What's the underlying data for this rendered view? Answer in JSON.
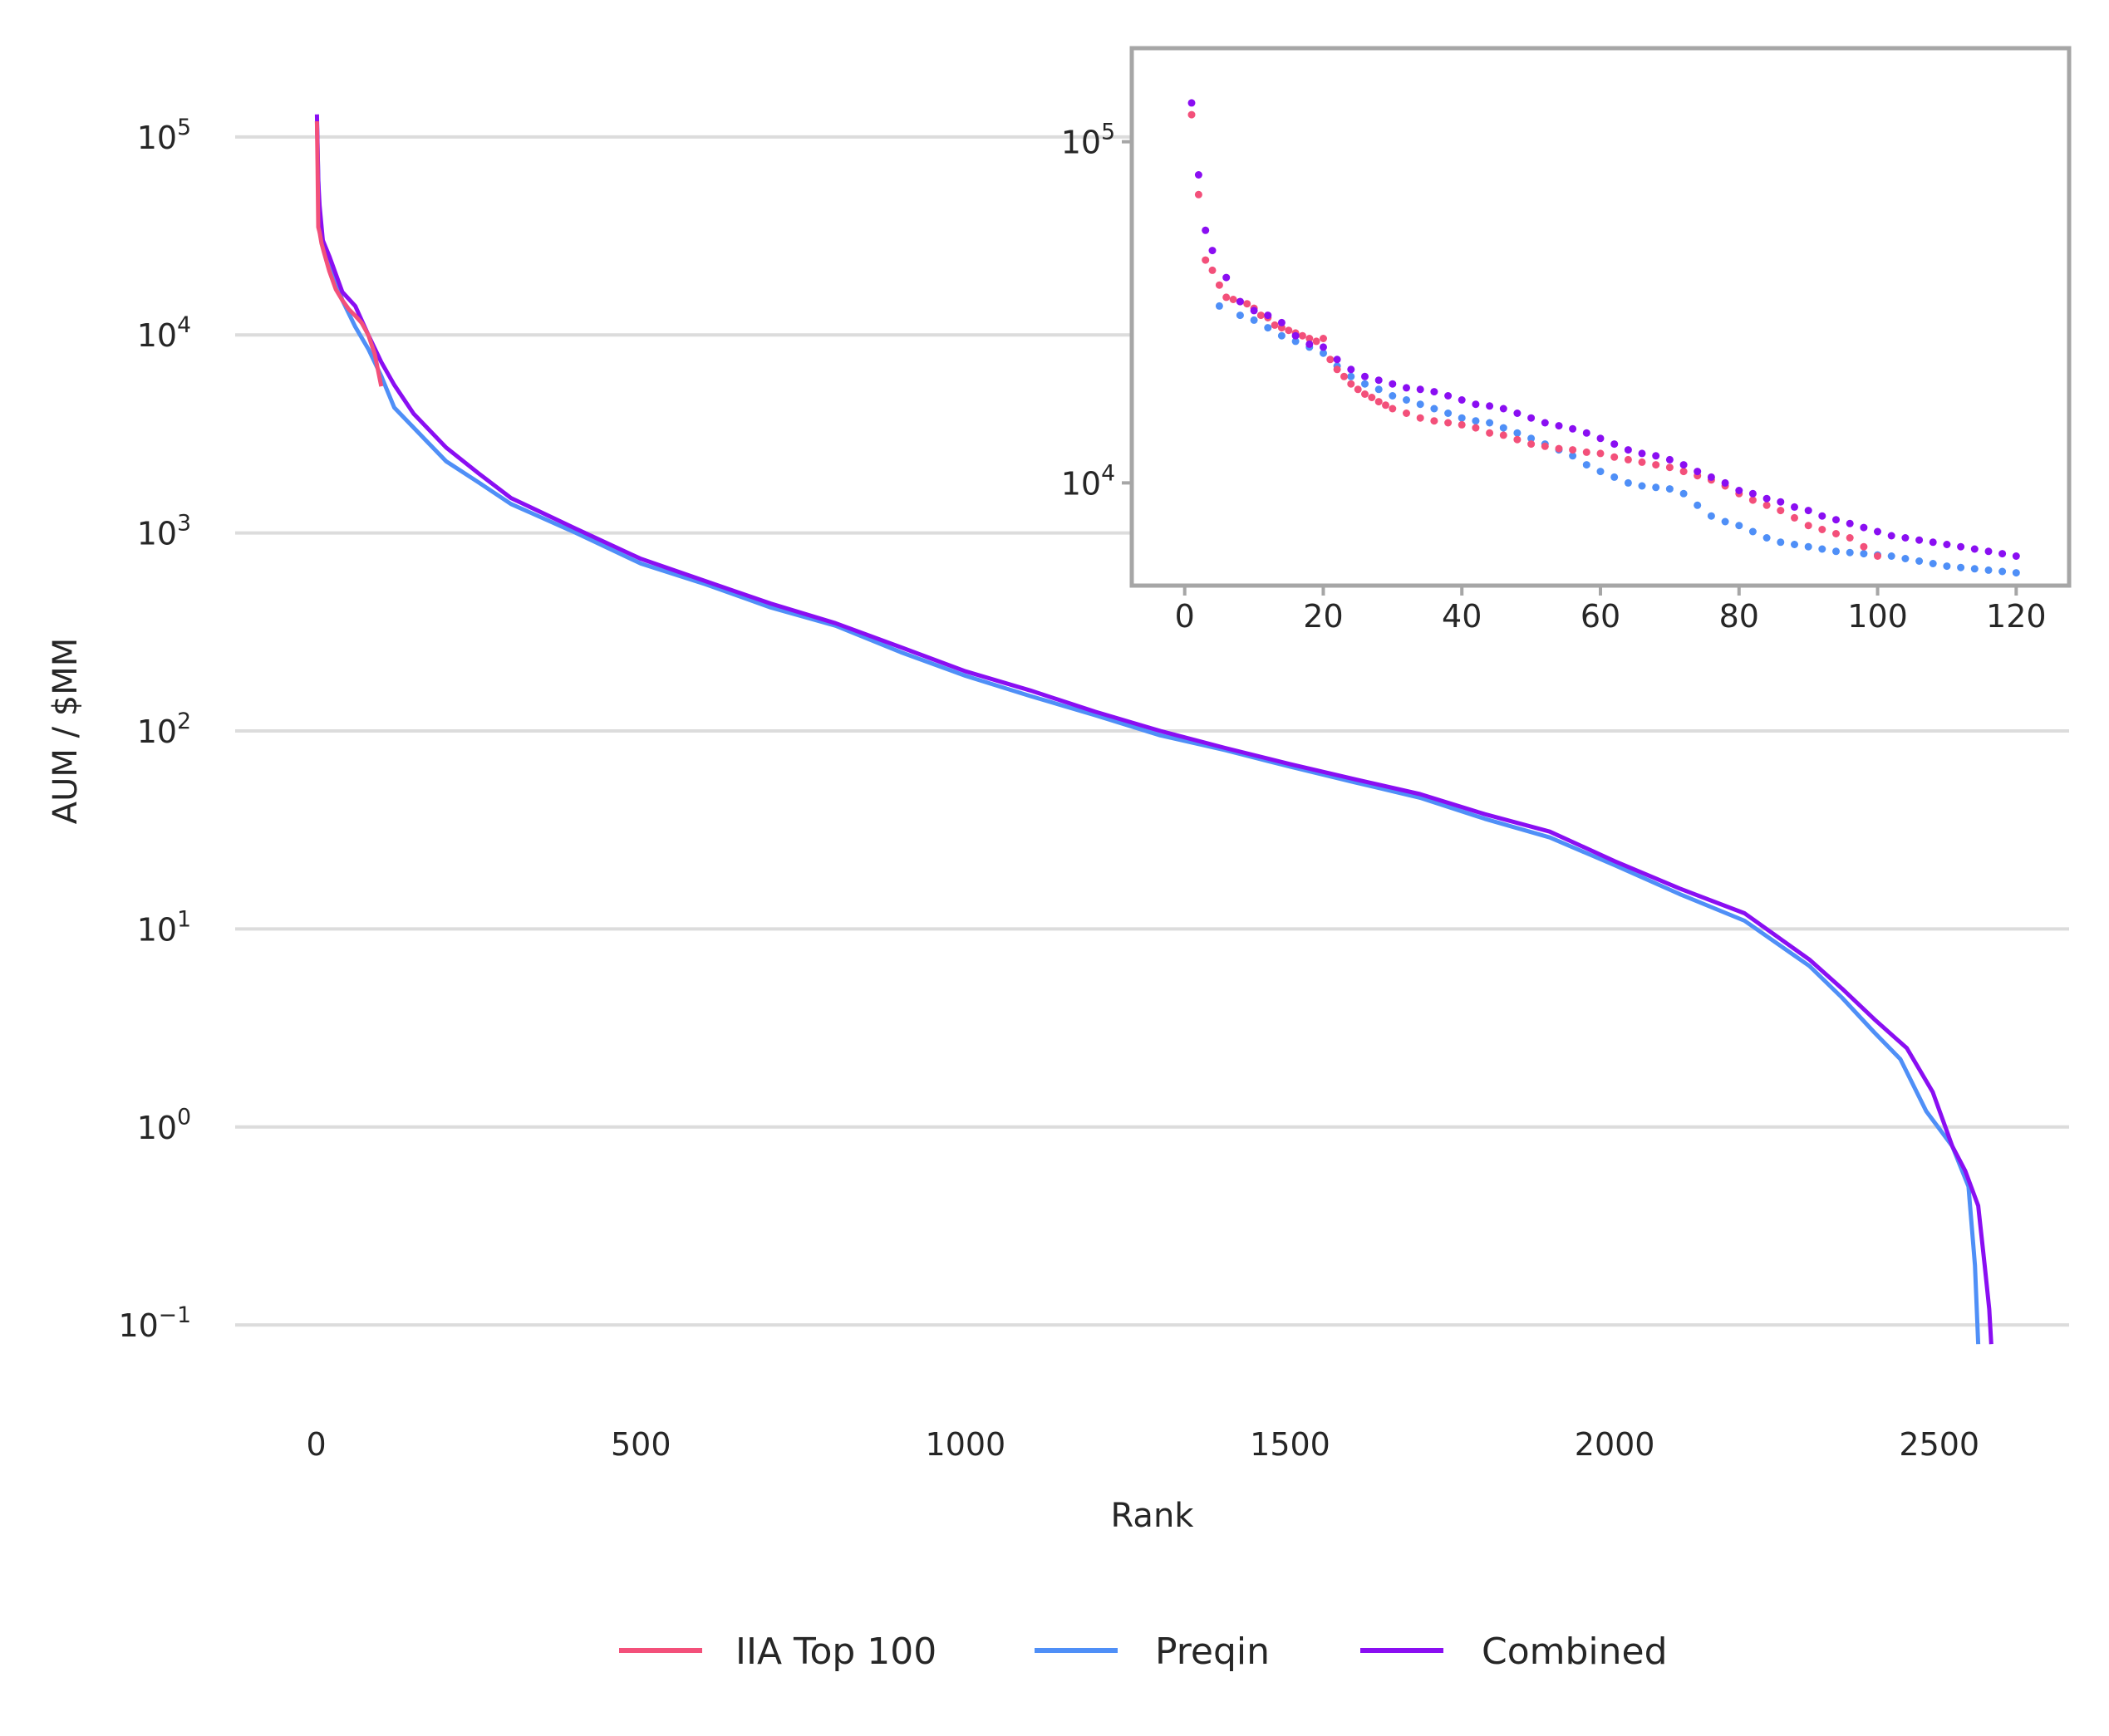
{
  "chart_data": [
    {
      "id": "main",
      "type": "line",
      "xlabel": "Rank",
      "ylabel": "AUM / $MM",
      "yscale": "log",
      "xlim": [
        -125,
        2700
      ],
      "ylim": [
        0.04,
        250000
      ],
      "xticks": [
        0,
        500,
        1000,
        1500,
        2000,
        2500
      ],
      "yticks": [
        0.1,
        1,
        10,
        100,
        1000,
        10000,
        100000
      ],
      "ytick_labels": [
        {
          "base": "10",
          "exp": "−1"
        },
        {
          "base": "10",
          "exp": "0"
        },
        {
          "base": "10",
          "exp": "1"
        },
        {
          "base": "10",
          "exp": "2"
        },
        {
          "base": "10",
          "exp": "3"
        },
        {
          "base": "10",
          "exp": "4"
        },
        {
          "base": "10",
          "exp": "5"
        }
      ],
      "grid": "horizontal",
      "legend_position": "bottom-center",
      "series": [
        {
          "name": "IIA Top 100",
          "color": "#f3507a",
          "x": [
            1,
            2,
            3,
            5,
            8,
            12,
            20,
            30,
            40,
            50,
            60,
            70,
            80,
            90,
            100
          ],
          "y": [
            120000,
            70000,
            35000,
            33000,
            29000,
            26000,
            21000,
            17000,
            15000,
            13500,
            12500,
            11500,
            10000,
            8000,
            5500
          ]
        },
        {
          "name": "Preqin",
          "color": "#4f8ff7",
          "x": [
            1,
            5,
            10,
            20,
            40,
            60,
            80,
            100,
            120,
            150,
            200,
            250,
            300,
            400,
            500,
            600,
            700,
            800,
            900,
            1000,
            1100,
            1200,
            1300,
            1400,
            1500,
            1600,
            1700,
            1800,
            1900,
            2000,
            2100,
            2200,
            2300,
            2350,
            2400,
            2440,
            2480,
            2520,
            2545,
            2555,
            2560
          ],
          "y": [
            120000,
            33000,
            30000,
            24000,
            15000,
            11000,
            8500,
            6200,
            4300,
            3400,
            2300,
            1800,
            1400,
            1000,
            700,
            550,
            420,
            340,
            250,
            190,
            150,
            120,
            95,
            80,
            66,
            55,
            46,
            36,
            29,
            21,
            15,
            11,
            6.5,
            4.5,
            3.0,
            2.2,
            1.2,
            0.8,
            0.5,
            0.2,
            0.08
          ]
        },
        {
          "name": "Combined",
          "color": "#8a0ef2",
          "x": [
            1,
            3,
            5,
            10,
            20,
            40,
            60,
            80,
            100,
            120,
            150,
            200,
            250,
            300,
            400,
            500,
            600,
            700,
            800,
            900,
            1000,
            1100,
            1200,
            1300,
            1400,
            1500,
            1600,
            1700,
            1800,
            1900,
            2000,
            2100,
            2200,
            2300,
            2350,
            2400,
            2450,
            2490,
            2520,
            2540,
            2560,
            2570,
            2577,
            2580
          ],
          "y": [
            130000,
            60000,
            45000,
            30000,
            25000,
            16500,
            14000,
            10000,
            7300,
            5600,
            4000,
            2700,
            2000,
            1500,
            1050,
            740,
            570,
            440,
            350,
            265,
            200,
            160,
            125,
            100,
            82,
            68,
            57,
            48,
            38,
            31,
            22,
            16,
            12,
            7.0,
            5.0,
            3.5,
            2.5,
            1.5,
            0.8,
            0.6,
            0.4,
            0.2,
            0.12,
            0.08
          ]
        }
      ]
    },
    {
      "id": "inset",
      "type": "scatter",
      "yscale": "log",
      "xlim": [
        -5,
        125
      ],
      "ylim": [
        5000,
        170000
      ],
      "xticks": [
        0,
        20,
        40,
        60,
        80,
        100,
        120
      ],
      "yticks": [
        10000,
        100000
      ],
      "ytick_labels": [
        {
          "base": "10",
          "exp": "4"
        },
        {
          "base": "10",
          "exp": "5"
        }
      ],
      "series": [
        {
          "name": "IIA Top 100",
          "color": "#f3507a",
          "x": [
            1,
            2,
            3,
            4,
            5,
            6,
            7,
            8,
            9,
            10,
            11,
            12,
            13,
            14,
            15,
            16,
            17,
            18,
            19,
            20,
            21,
            22,
            23,
            24,
            25,
            26,
            27,
            28,
            29,
            30,
            32,
            34,
            36,
            38,
            40,
            42,
            44,
            46,
            48,
            50,
            52,
            54,
            56,
            58,
            60,
            62,
            64,
            66,
            68,
            70,
            72,
            74,
            76,
            78,
            80,
            82,
            84,
            86,
            88,
            90,
            92,
            94,
            96,
            98,
            100
          ],
          "y": [
            120000,
            70000,
            45000,
            42000,
            38000,
            35000,
            34500,
            34000,
            33500,
            32500,
            31000,
            30500,
            29000,
            28500,
            28000,
            27500,
            27000,
            26500,
            26000,
            26500,
            23000,
            21500,
            20500,
            19500,
            18800,
            18200,
            17800,
            17300,
            16900,
            16500,
            16000,
            15500,
            15200,
            15000,
            14800,
            14500,
            14000,
            13800,
            13400,
            13000,
            12800,
            12600,
            12500,
            12300,
            12200,
            11900,
            11700,
            11500,
            11300,
            11100,
            10800,
            10500,
            10200,
            9800,
            9300,
            8900,
            8600,
            8300,
            7900,
            7500,
            7300,
            7100,
            6900,
            6500,
            6100
          ]
        },
        {
          "name": "Preqin",
          "color": "#4f8ff7",
          "x": [
            5,
            8,
            10,
            12,
            14,
            16,
            18,
            20,
            22,
            24,
            26,
            28,
            30,
            32,
            34,
            36,
            38,
            40,
            42,
            44,
            46,
            48,
            50,
            52,
            54,
            56,
            58,
            60,
            62,
            64,
            66,
            68,
            70,
            72,
            74,
            76,
            78,
            80,
            82,
            84,
            86,
            88,
            90,
            92,
            94,
            96,
            98,
            100,
            102,
            104,
            106,
            108,
            110,
            112,
            114,
            116,
            118,
            120
          ],
          "y": [
            33000,
            31000,
            30000,
            28500,
            27000,
            26000,
            25000,
            24000,
            22000,
            20500,
            19500,
            18800,
            18000,
            17500,
            17000,
            16500,
            16000,
            15500,
            15200,
            15000,
            14500,
            14000,
            13500,
            13000,
            12500,
            12000,
            11300,
            10800,
            10400,
            10000,
            9800,
            9700,
            9600,
            9300,
            8600,
            8000,
            7700,
            7500,
            7200,
            6900,
            6700,
            6600,
            6500,
            6400,
            6300,
            6250,
            6200,
            6150,
            6100,
            6000,
            5900,
            5800,
            5700,
            5650,
            5600,
            5550,
            5500,
            5450
          ]
        },
        {
          "name": "Combined",
          "color": "#8a0ef2",
          "x": [
            1,
            2,
            3,
            4,
            6,
            8,
            10,
            12,
            14,
            16,
            18,
            20,
            22,
            24,
            26,
            28,
            30,
            32,
            34,
            36,
            38,
            40,
            42,
            44,
            46,
            48,
            50,
            52,
            54,
            56,
            58,
            60,
            62,
            64,
            66,
            68,
            70,
            72,
            74,
            76,
            78,
            80,
            82,
            84,
            86,
            88,
            90,
            92,
            94,
            96,
            98,
            100,
            102,
            104,
            106,
            108,
            110,
            112,
            114,
            116,
            118,
            120
          ],
          "y": [
            130000,
            80000,
            55000,
            48000,
            40000,
            34000,
            32000,
            31000,
            29500,
            27000,
            25500,
            25000,
            23000,
            21500,
            20500,
            20000,
            19500,
            19000,
            18800,
            18500,
            18000,
            17500,
            17000,
            16800,
            16500,
            16000,
            15500,
            15000,
            14700,
            14400,
            14000,
            13500,
            13000,
            12500,
            12200,
            12000,
            11700,
            11300,
            10800,
            10400,
            10000,
            9500,
            9300,
            9000,
            8800,
            8500,
            8300,
            8000,
            7800,
            7600,
            7400,
            7200,
            7000,
            6900,
            6800,
            6700,
            6600,
            6500,
            6400,
            6300,
            6200,
            6100
          ]
        }
      ]
    }
  ]
}
